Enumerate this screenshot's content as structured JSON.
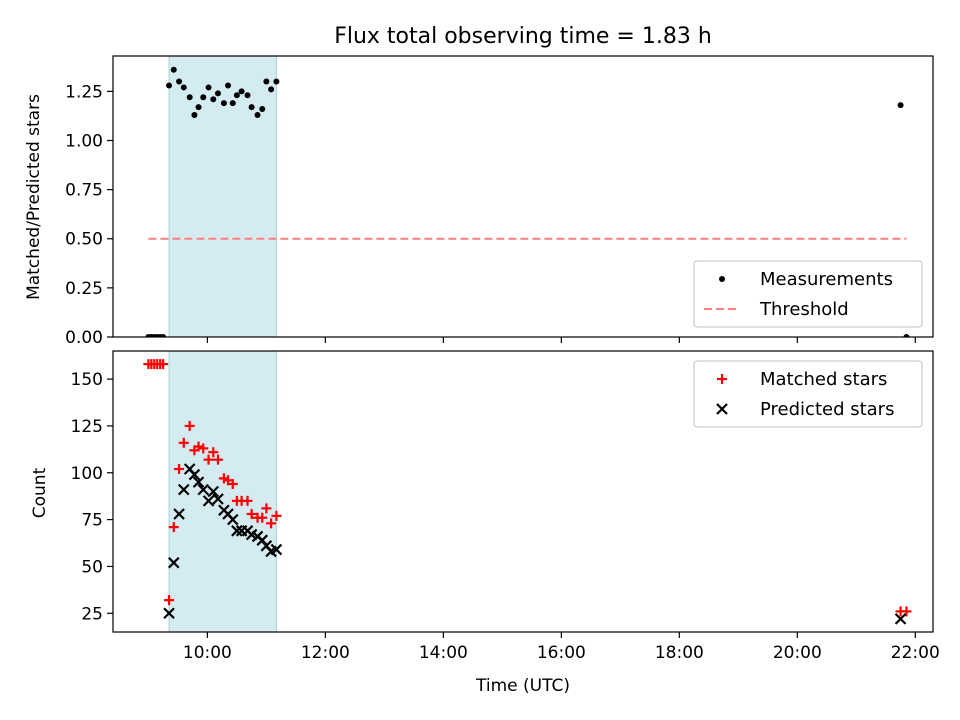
{
  "chart_data": [
    {
      "type": "scatter",
      "title": "Flux total observing time = 1.83 h",
      "xlabel": "",
      "ylabel": "Matched/Predicted stars",
      "xlim": [
        8.4,
        22.3
      ],
      "ylim": [
        0.0,
        1.43
      ],
      "x_ticks": [
        10,
        12,
        14,
        16,
        18,
        20,
        22
      ],
      "y_ticks": [
        0.0,
        0.25,
        0.5,
        0.75,
        1.0,
        1.25
      ],
      "y_tick_labels": [
        "0.00",
        "0.25",
        "0.50",
        "0.75",
        "1.00",
        "1.25"
      ],
      "legend_position": "lower-right",
      "shaded_span": {
        "x_start": 9.35,
        "x_end": 11.17,
        "color": "#d4ebf1"
      },
      "series": [
        {
          "name": "Measurements",
          "marker": "dot",
          "color": "#000000",
          "x": [
            9.0,
            9.05,
            9.1,
            9.15,
            9.2,
            9.25,
            9.35,
            9.43,
            9.52,
            9.6,
            9.7,
            9.78,
            9.85,
            9.93,
            10.02,
            10.1,
            10.18,
            10.28,
            10.35,
            10.43,
            10.5,
            10.58,
            10.68,
            10.75,
            10.85,
            10.93,
            11.0,
            11.08,
            11.17,
            21.75,
            21.85
          ],
          "y": [
            0.0,
            0.0,
            0.0,
            0.0,
            0.0,
            0.0,
            1.28,
            1.36,
            1.3,
            1.27,
            1.22,
            1.13,
            1.17,
            1.22,
            1.27,
            1.21,
            1.24,
            1.19,
            1.28,
            1.19,
            1.23,
            1.25,
            1.23,
            1.17,
            1.13,
            1.16,
            1.3,
            1.26,
            1.3,
            1.18,
            0.0
          ]
        },
        {
          "name": "Threshold",
          "marker": "dashed-line",
          "color": "#ff7f7f",
          "x": [
            9.0,
            21.85
          ],
          "y": [
            0.5,
            0.5
          ]
        }
      ]
    },
    {
      "type": "scatter",
      "title": "",
      "xlabel": "Time (UTC)",
      "ylabel": "Count",
      "xlim": [
        8.4,
        22.3
      ],
      "ylim": [
        15,
        165
      ],
      "x_ticks": [
        10,
        12,
        14,
        16,
        18,
        20,
        22
      ],
      "x_tick_labels": [
        "10:00",
        "12:00",
        "14:00",
        "16:00",
        "18:00",
        "20:00",
        "22:00"
      ],
      "y_ticks": [
        25,
        50,
        75,
        100,
        125,
        150
      ],
      "y_tick_labels": [
        "25",
        "50",
        "75",
        "100",
        "125",
        "150"
      ],
      "legend_position": "top-right",
      "shaded_span": {
        "x_start": 9.35,
        "x_end": 11.17,
        "color": "#d4ebf1"
      },
      "series": [
        {
          "name": "Matched stars",
          "marker": "plus",
          "color": "#ff0000",
          "x": [
            9.0,
            9.05,
            9.1,
            9.15,
            9.2,
            9.25,
            9.35,
            9.43,
            9.52,
            9.6,
            9.7,
            9.78,
            9.85,
            9.93,
            10.02,
            10.1,
            10.18,
            10.28,
            10.35,
            10.43,
            10.5,
            10.58,
            10.68,
            10.75,
            10.85,
            10.93,
            11.0,
            11.08,
            11.17,
            21.75,
            21.85
          ],
          "y": [
            158,
            158,
            158,
            158,
            158,
            158,
            32,
            71,
            102,
            116,
            125,
            112,
            114,
            113,
            107,
            111,
            107,
            97,
            96,
            94,
            85,
            85,
            85,
            78,
            76,
            76,
            81,
            73,
            77,
            26,
            26
          ]
        },
        {
          "name": "Predicted stars",
          "marker": "x",
          "color": "#000000",
          "x": [
            9.35,
            9.43,
            9.52,
            9.6,
            9.7,
            9.78,
            9.85,
            9.93,
            10.02,
            10.1,
            10.18,
            10.28,
            10.35,
            10.43,
            10.5,
            10.58,
            10.68,
            10.75,
            10.85,
            10.93,
            11.0,
            11.08,
            11.17,
            21.75
          ],
          "y": [
            25,
            52,
            78,
            91,
            102,
            99,
            95,
            91,
            85,
            90,
            86,
            80,
            78,
            75,
            69,
            69,
            69,
            67,
            66,
            64,
            61,
            58,
            59,
            22
          ]
        }
      ]
    }
  ]
}
